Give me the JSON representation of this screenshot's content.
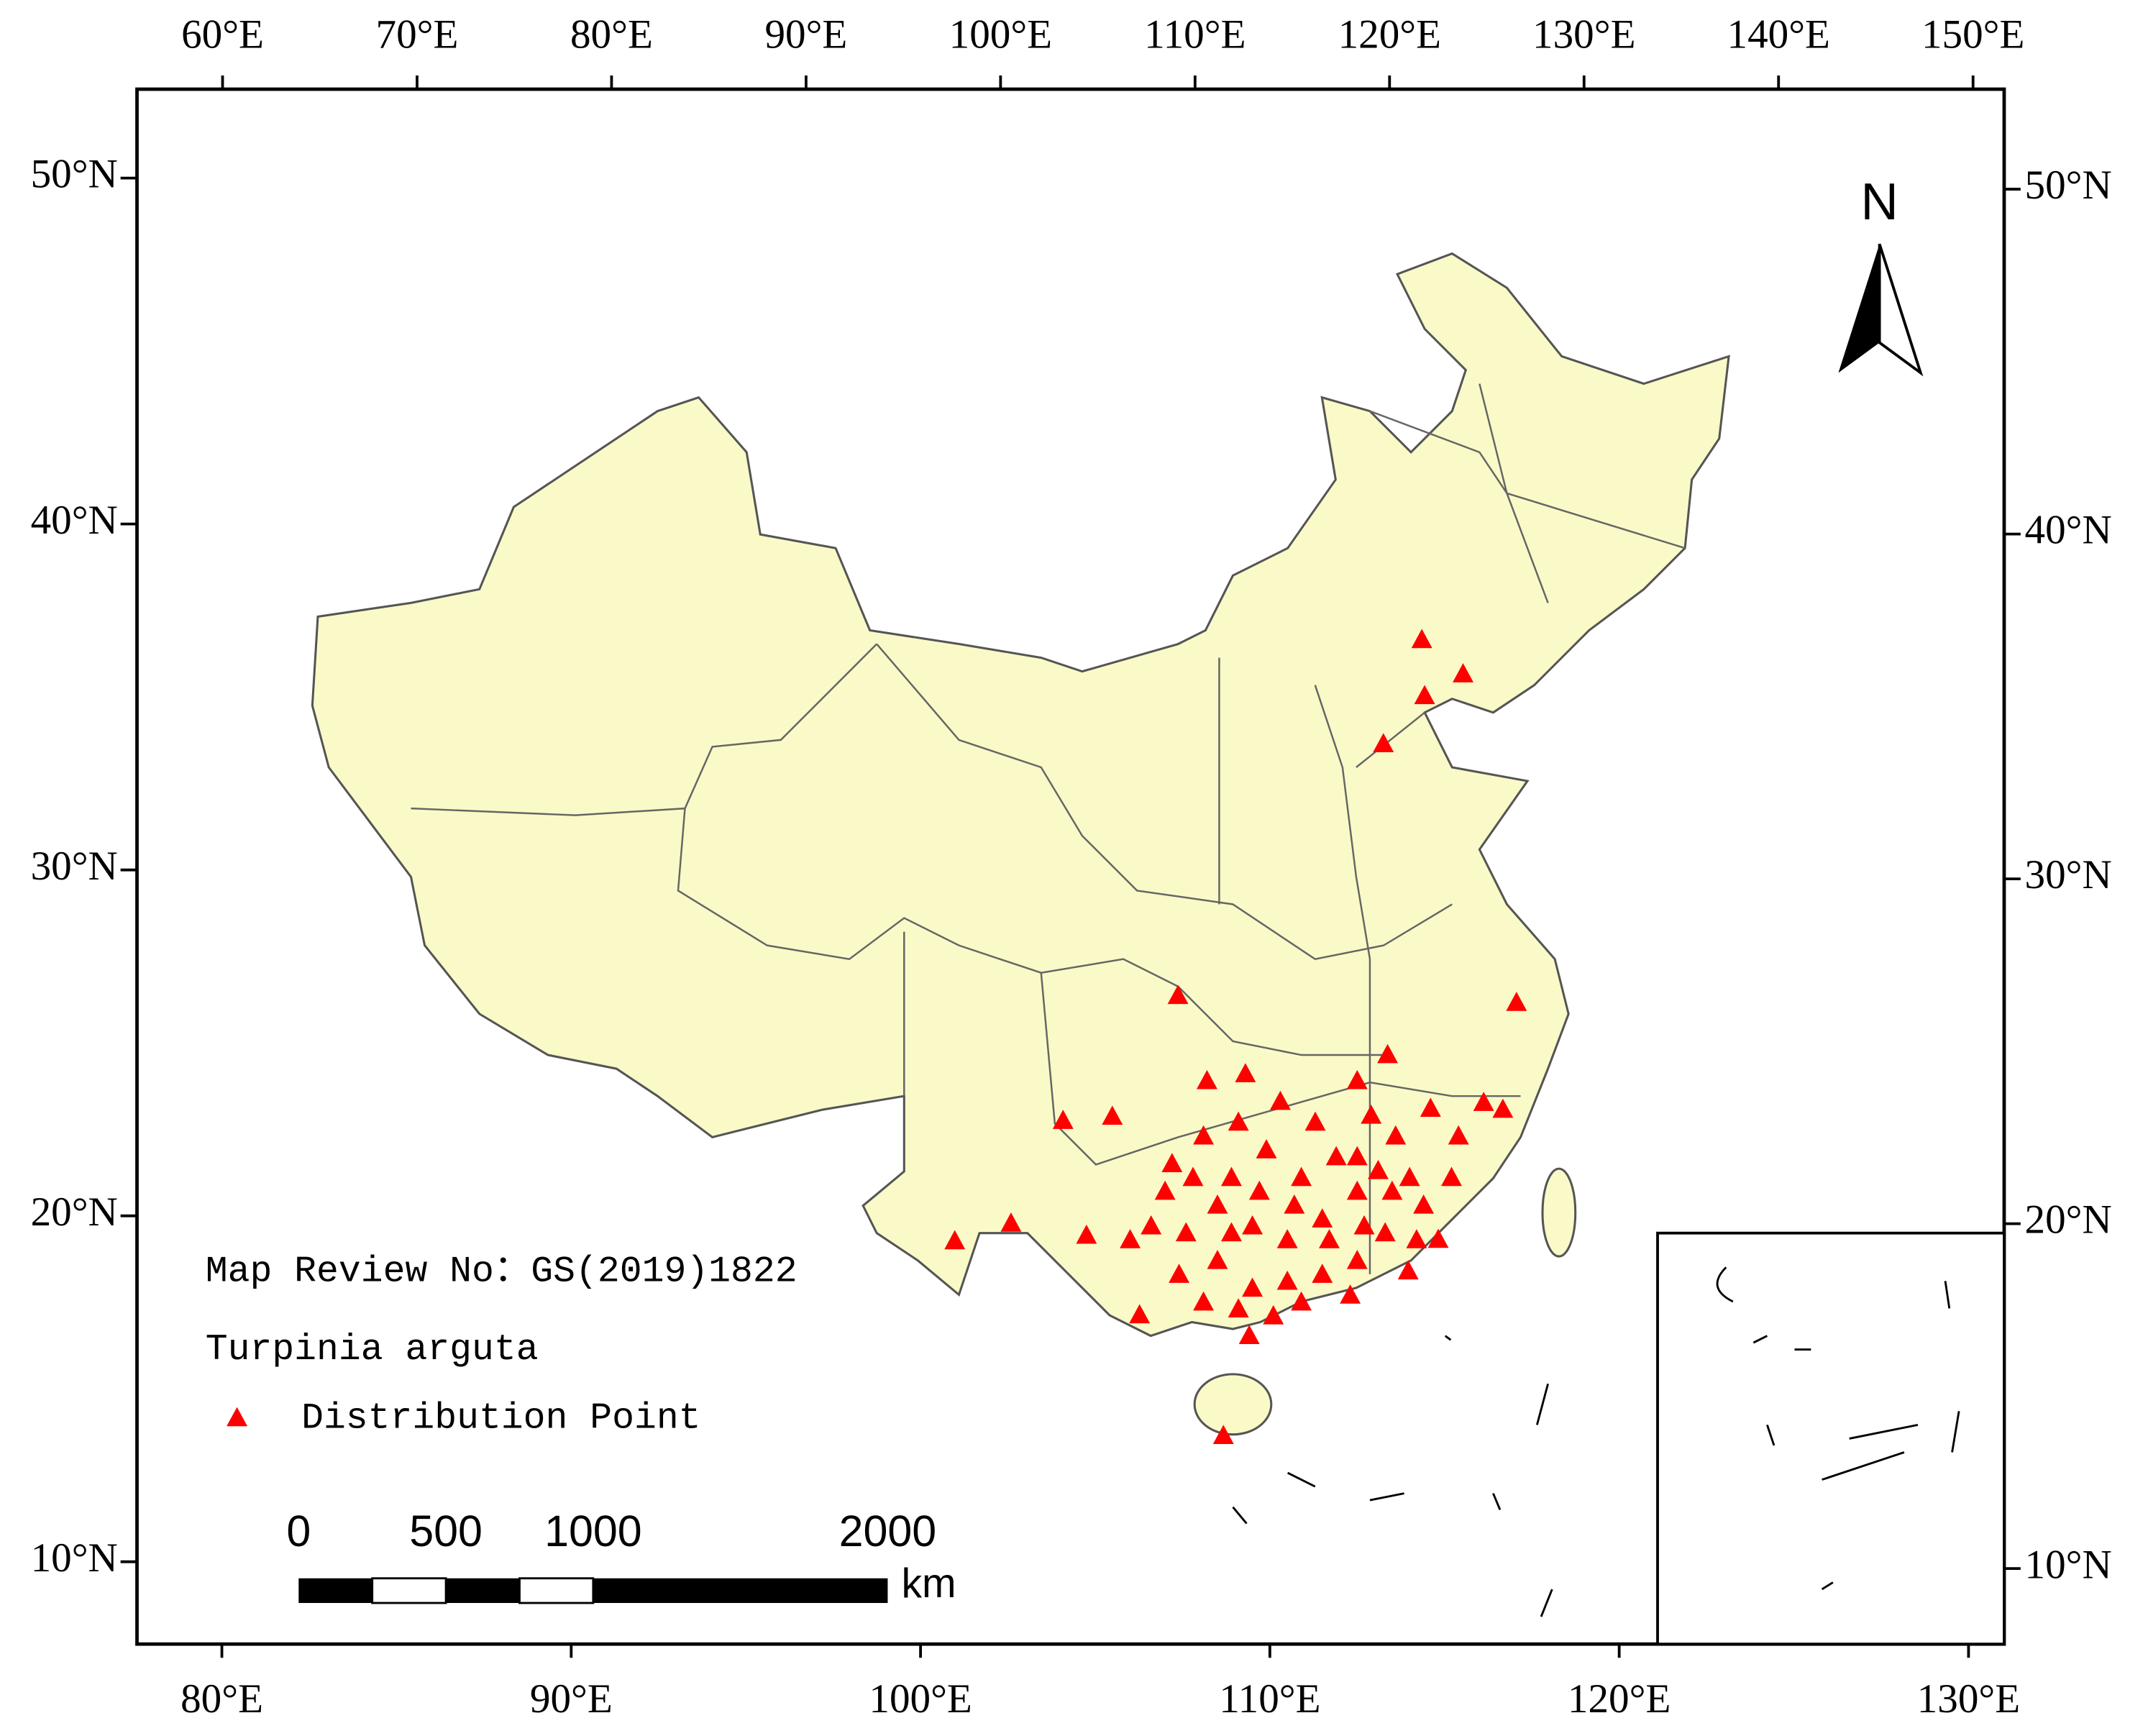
{
  "map": {
    "axes": {
      "top": {
        "lim": [
          55.6,
          151.6
        ],
        "ticks": [
          {
            "value": 60,
            "label": "60°E"
          },
          {
            "value": 70,
            "label": "70°E"
          },
          {
            "value": 80,
            "label": "80°E"
          },
          {
            "value": 90,
            "label": "90°E"
          },
          {
            "value": 100,
            "label": "100°E"
          },
          {
            "value": 110,
            "label": "110°E"
          },
          {
            "value": 120,
            "label": "120°E"
          },
          {
            "value": 130,
            "label": "130°E"
          },
          {
            "value": 140,
            "label": "140°E"
          },
          {
            "value": 150,
            "label": "150°E"
          }
        ]
      },
      "bottom": {
        "lim": [
          77.57,
          131.02
        ],
        "ticks": [
          {
            "value": 80,
            "label": "80°E"
          },
          {
            "value": 90,
            "label": "90°E"
          },
          {
            "value": 100,
            "label": "100°E"
          },
          {
            "value": 110,
            "label": "110°E"
          },
          {
            "value": 120,
            "label": "120°E"
          },
          {
            "value": 130,
            "label": "130°E"
          }
        ]
      },
      "left": {
        "lim": [
          7.62,
          52.57
        ],
        "ticks": [
          {
            "value": 10,
            "label": "10°N"
          },
          {
            "value": 20,
            "label": "20°N"
          },
          {
            "value": 30,
            "label": "30°N"
          },
          {
            "value": 40,
            "label": "40°N"
          },
          {
            "value": 50,
            "label": "50°N"
          }
        ]
      },
      "right": {
        "lim": [
          7.81,
          52.9
        ],
        "ticks": [
          {
            "value": 10,
            "label": "10°N"
          },
          {
            "value": 20,
            "label": "20°N"
          },
          {
            "value": 30,
            "label": "30°N"
          },
          {
            "value": 40,
            "label": "40°N"
          },
          {
            "value": 50,
            "label": "50°N"
          }
        ]
      }
    },
    "north_label": "N",
    "note": "Map Review No：GS(2019)1822",
    "species": "Turpinia arguta",
    "legend_label": "Distribution Point",
    "points": {
      "color": "#ff0000",
      "lon": [
        114.35,
        115.53,
        114.43,
        113.25,
        107.37,
        117.06,
        104.08,
        105.49,
        100.98,
        102.59,
        104.75,
        106.27,
        108.67,
        109.41,
        113.37,
        116.12,
        116.67,
        114.82,
        113.96,
        108.2,
        109.3,
        110.3,
        107.2,
        108.1,
        109.1,
        109.9,
        110.9,
        111.9,
        112.5,
        112.9,
        113.6,
        114.6,
        115.4,
        115.2,
        114.4,
        113.5,
        112.5,
        111.5,
        110.5,
        109.5,
        108.5,
        107.6,
        106.6,
        106.0,
        107.4,
        108.5,
        109.5,
        110.5,
        111.5,
        112.5,
        113.3,
        114.0,
        107.0,
        107.8,
        108.9,
        109.7,
        110.7,
        111.7,
        112.7,
        114.2,
        110.1,
        109.1,
        110.9,
        112.3,
        108.1,
        112.5,
        113.1,
        111.3,
        108.9
      ],
      "lat": [
        36.65,
        35.66,
        35.03,
        33.64,
        26.36,
        26.16,
        22.75,
        22.87,
        19.27,
        19.78,
        19.43,
        17.13,
        13.64,
        16.53,
        24.65,
        23.27,
        23.07,
        19.31,
        18.4,
        23.9,
        24.1,
        23.3,
        21.5,
        22.3,
        22.7,
        21.9,
        21.1,
        21.7,
        23.9,
        22.9,
        22.3,
        23.1,
        22.3,
        21.1,
        20.3,
        20.7,
        20.7,
        19.9,
        19.3,
        19.7,
        20.3,
        19.5,
        19.7,
        19.3,
        18.3,
        18.7,
        17.9,
        18.1,
        18.3,
        18.7,
        19.5,
        21.1,
        20.7,
        21.1,
        21.1,
        20.7,
        20.3,
        19.3,
        19.7,
        19.3,
        17.1,
        17.3,
        17.5,
        17.7,
        17.5,
        21.7,
        21.3,
        22.7,
        19.5
      ]
    },
    "scale_bar": {
      "ticks": [
        0,
        500,
        1000,
        2000
      ],
      "unit": "km"
    }
  }
}
